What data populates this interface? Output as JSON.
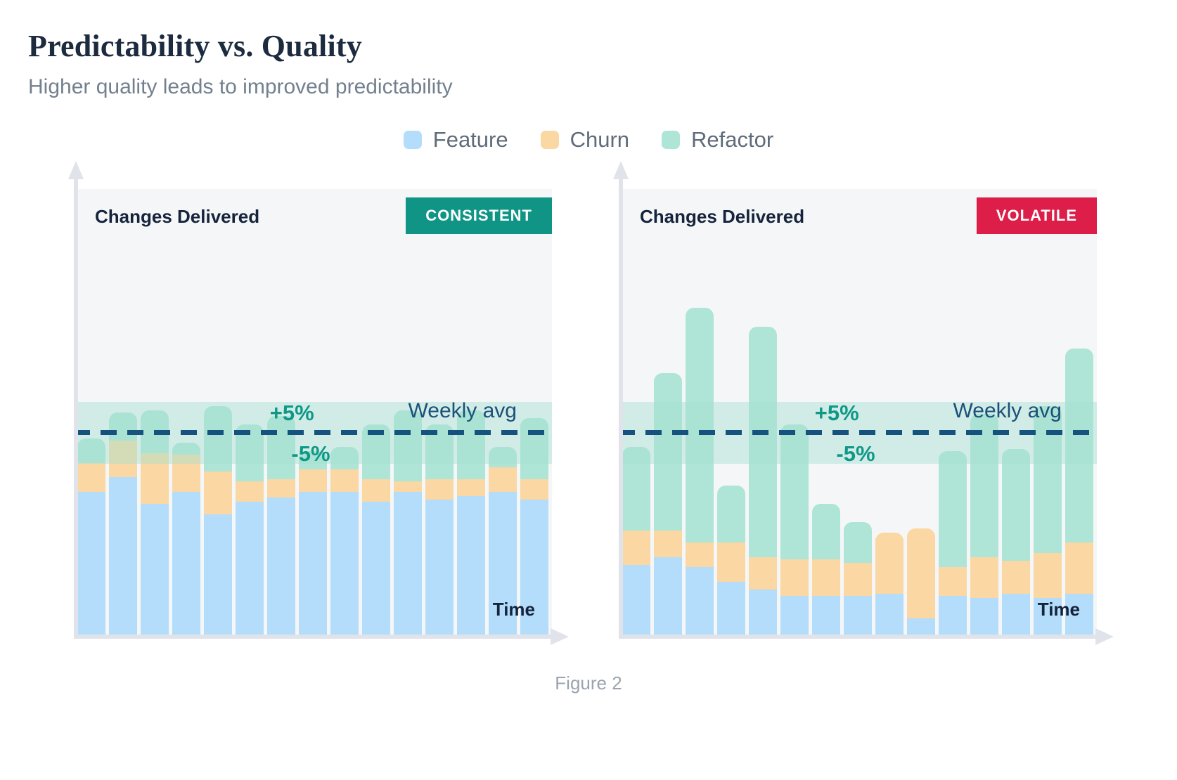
{
  "header": {
    "title": "Predictability vs. Quality",
    "subtitle": "Higher quality leads to improved predictability"
  },
  "legend": [
    {
      "label": "Feature",
      "color": "#b3ddfa"
    },
    {
      "label": "Churn",
      "color": "#fad7a3"
    },
    {
      "label": "Refactor",
      "color": "#aee5d6"
    }
  ],
  "charts": [
    {
      "axis_label": "Changes Delivered",
      "badge_label": "CONSISTENT",
      "badge_color": "#0f9485",
      "plus_label": "+5%",
      "minus_label": "-5%",
      "avg_label": "Weekly avg",
      "x_label": "Time"
    },
    {
      "axis_label": "Changes Delivered",
      "badge_label": "VOLATILE",
      "badge_color": "#dc1e49",
      "plus_label": "+5%",
      "minus_label": "-5%",
      "avg_label": "Weekly avg",
      "x_label": "Time"
    }
  ],
  "caption": "Figure 2",
  "colors": {
    "dashed_line": "#15537e",
    "band": "rgba(167,224,209,0.45)",
    "panel_bg": "#f5f6f8",
    "axis": "#e0e4ea"
  },
  "chart_data": [
    {
      "type": "bar",
      "stacked": true,
      "title": "CONSISTENT",
      "xlabel": "Time",
      "ylabel": "Changes Delivered",
      "units": "percent of weekly average (weekly avg = 100)",
      "weekly_avg": 100,
      "band_pct": 5,
      "annotations": {
        "avg_line": "Weekly avg",
        "band_top": "+5%",
        "band_bottom": "-5%"
      },
      "grid": false,
      "legend_position": "top-center",
      "series": [
        {
          "name": "Feature",
          "values": [
            70,
            77,
            64,
            70,
            59,
            65,
            67,
            70,
            70,
            65,
            70,
            66,
            68,
            70,
            66
          ]
        },
        {
          "name": "Churn",
          "values": [
            14,
            18,
            25,
            18,
            21,
            10,
            9,
            11,
            11,
            11,
            5,
            10,
            8,
            12,
            10
          ]
        },
        {
          "name": "Refactor",
          "values": [
            12,
            14,
            21,
            6,
            32,
            28,
            31,
            9,
            11,
            27,
            35,
            27,
            34,
            10,
            30
          ]
        }
      ],
      "totals": [
        96,
        109,
        110,
        94,
        112,
        103,
        107,
        90,
        92,
        103,
        110,
        103,
        110,
        92,
        106
      ],
      "layout": {
        "avg_frac_from_top": 0.542,
        "unit_pct_per_value": 0.458,
        "bar_width_pct": 5.88,
        "bar_pitch_pct": 6.62,
        "bar_offset_pct": 0.74
      }
    },
    {
      "type": "bar",
      "stacked": true,
      "title": "VOLATILE",
      "xlabel": "Time",
      "ylabel": "Changes Delivered",
      "units": "percent of weekly average (weekly avg = 100)",
      "weekly_avg": 100,
      "band_pct": 5,
      "annotations": {
        "avg_line": "Weekly avg",
        "band_top": "+5%",
        "band_bottom": "-5%"
      },
      "grid": false,
      "legend_position": "top-center",
      "series": [
        {
          "name": "Feature",
          "values": [
            34,
            38,
            33,
            26,
            22,
            19,
            19,
            19,
            20,
            8,
            19,
            18,
            20,
            18,
            20
          ]
        },
        {
          "name": "Churn",
          "values": [
            17,
            13,
            12,
            19,
            16,
            18,
            18,
            16,
            30,
            44,
            14,
            20,
            16,
            22,
            25
          ]
        },
        {
          "name": "Refactor",
          "values": [
            41,
            77,
            115,
            28,
            113,
            66,
            27,
            20,
            0,
            0,
            57,
            70,
            55,
            72,
            95
          ]
        }
      ],
      "totals": [
        92,
        128,
        160,
        73,
        151,
        103,
        64,
        55,
        50,
        52,
        90,
        108,
        91,
        112,
        140
      ],
      "layout": {
        "avg_frac_from_top": 0.542,
        "unit_pct_per_value": 0.458,
        "bar_width_pct": 5.88,
        "bar_pitch_pct": 6.62,
        "bar_offset_pct": 0.74
      }
    }
  ]
}
